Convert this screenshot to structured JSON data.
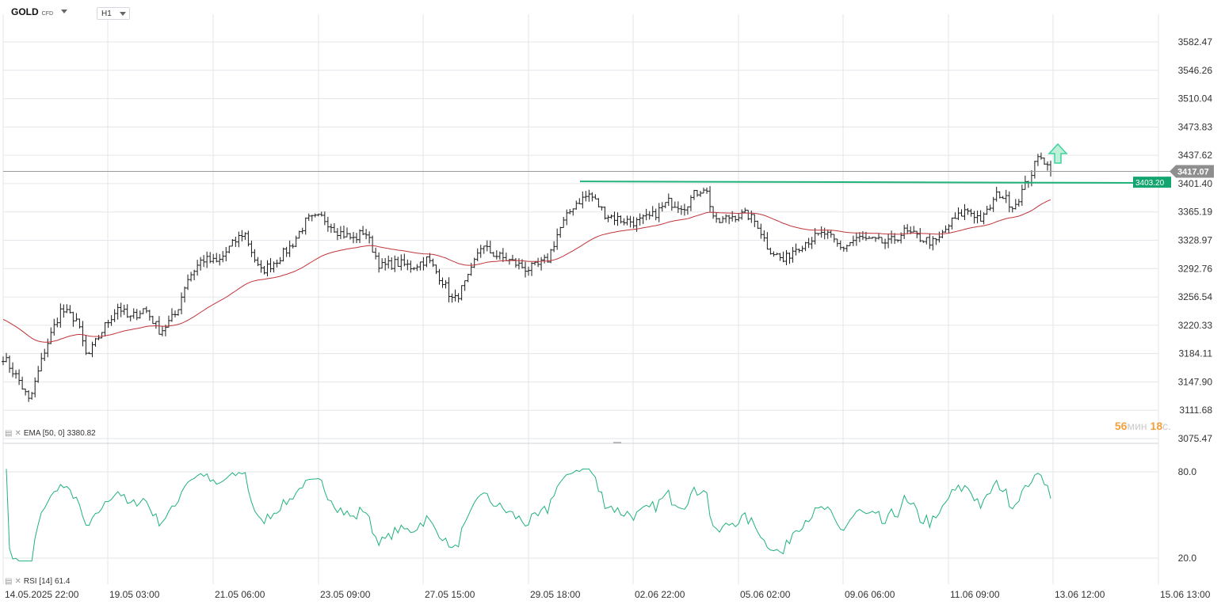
{
  "symbol": {
    "name": "GOLD",
    "type": "CFD"
  },
  "timeframe": {
    "value": "H1"
  },
  "indicators": {
    "ema": {
      "label": "EMA [50, 0]",
      "value": "3380.82"
    },
    "rsi": {
      "label": "RSI [14]",
      "value": "61.4"
    }
  },
  "timer": {
    "minutes": "56",
    "min_unit": "мин",
    "seconds": "18",
    "sec_unit": "с."
  },
  "colors": {
    "grid": "#e3e6ea",
    "candle": "#1a1a1a",
    "ema": "#c0353a",
    "rsi": "#20b27a",
    "support_line": "#20b27a",
    "last_price_label": "#8e8e8e",
    "support_label": "#12a56f",
    "arrow": "#3fd39a"
  },
  "icons": [
    "chevron-down-icon",
    "indicator-settings-icon",
    "remove-indicator-icon",
    "up-arrow-icon"
  ],
  "chart_data": {
    "type": "ohlc",
    "price_axis_ticks": [
      "3582.47",
      "3546.26",
      "3510.04",
      "3473.83",
      "3437.62",
      "3401.40",
      "3365.19",
      "3328.97",
      "3292.76",
      "3256.54",
      "3220.33",
      "3184.11",
      "3147.90",
      "3111.68",
      "3075.47"
    ],
    "price_axis_tick_values": [
      3582.47,
      3546.26,
      3510.04,
      3473.83,
      3437.62,
      3401.4,
      3365.19,
      3328.97,
      3292.76,
      3256.54,
      3220.33,
      3184.11,
      3147.9,
      3111.68,
      3075.47
    ],
    "time_axis_labels": [
      "14.05.2025  22:00",
      "19.05  03:00",
      "21.05  06:00",
      "23.05  09:00",
      "27.05  15:00",
      "29.05  18:00",
      "02.06  22:00",
      "05.06  02:00",
      "09.06  06:00",
      "11.06  09:00",
      "13.06  12:00",
      "15.06  13:00"
    ],
    "last_price": "3417.07",
    "last_price_value": 3417.07,
    "support_level": "3403.20",
    "support_level_value": 3403.2,
    "price_anchors": [
      [
        0,
        3180
      ],
      [
        0.015,
        3150
      ],
      [
        0.025,
        3122
      ],
      [
        0.04,
        3190
      ],
      [
        0.055,
        3240
      ],
      [
        0.07,
        3228
      ],
      [
        0.08,
        3178
      ],
      [
        0.095,
        3215
      ],
      [
        0.11,
        3245
      ],
      [
        0.12,
        3228
      ],
      [
        0.135,
        3242
      ],
      [
        0.15,
        3212
      ],
      [
        0.165,
        3235
      ],
      [
        0.175,
        3278
      ],
      [
        0.19,
        3305
      ],
      [
        0.205,
        3300
      ],
      [
        0.215,
        3318
      ],
      [
        0.23,
        3340
      ],
      [
        0.245,
        3288
      ],
      [
        0.26,
        3302
      ],
      [
        0.275,
        3322
      ],
      [
        0.29,
        3355
      ],
      [
        0.305,
        3358
      ],
      [
        0.32,
        3340
      ],
      [
        0.335,
        3330
      ],
      [
        0.345,
        3342
      ],
      [
        0.36,
        3295
      ],
      [
        0.375,
        3300
      ],
      [
        0.39,
        3295
      ],
      [
        0.405,
        3305
      ],
      [
        0.42,
        3276
      ],
      [
        0.43,
        3250
      ],
      [
        0.445,
        3282
      ],
      [
        0.455,
        3322
      ],
      [
        0.47,
        3310
      ],
      [
        0.485,
        3302
      ],
      [
        0.5,
        3292
      ],
      [
        0.51,
        3296
      ],
      [
        0.52,
        3305
      ],
      [
        0.53,
        3340
      ],
      [
        0.545,
        3375
      ],
      [
        0.56,
        3388
      ],
      [
        0.575,
        3362
      ],
      [
        0.59,
        3355
      ],
      [
        0.605,
        3352
      ],
      [
        0.62,
        3360
      ],
      [
        0.635,
        3378
      ],
      [
        0.65,
        3372
      ],
      [
        0.66,
        3388
      ],
      [
        0.67,
        3398
      ],
      [
        0.68,
        3350
      ],
      [
        0.695,
        3360
      ],
      [
        0.71,
        3362
      ],
      [
        0.72,
        3350
      ],
      [
        0.73,
        3320
      ],
      [
        0.745,
        3302
      ],
      [
        0.755,
        3318
      ],
      [
        0.77,
        3330
      ],
      [
        0.785,
        3338
      ],
      [
        0.8,
        3318
      ],
      [
        0.815,
        3332
      ],
      [
        0.83,
        3328
      ],
      [
        0.845,
        3325
      ],
      [
        0.86,
        3340
      ],
      [
        0.875,
        3332
      ],
      [
        0.89,
        3325
      ],
      [
        0.905,
        3352
      ],
      [
        0.92,
        3368
      ],
      [
        0.935,
        3355
      ],
      [
        0.95,
        3390
      ],
      [
        0.965,
        3372
      ],
      [
        0.97,
        3385
      ],
      [
        0.98,
        3410
      ],
      [
        0.99,
        3440
      ],
      [
        1.0,
        3417
      ]
    ],
    "ema_start": 3230,
    "ema_end": 3380.82,
    "rsi_axis_ticks": [
      "80.0",
      "20.0"
    ],
    "rsi_axis_tick_values": [
      80,
      20
    ],
    "rsi_last": 61.4
  }
}
